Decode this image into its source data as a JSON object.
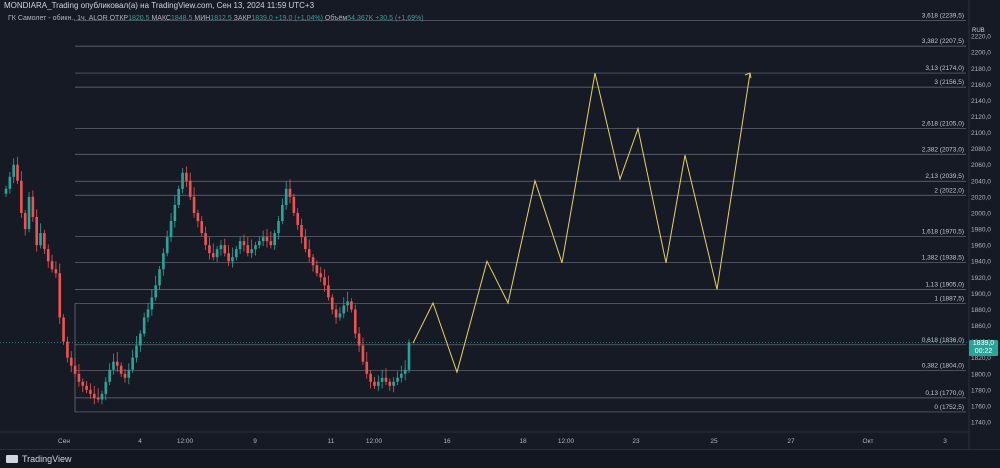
{
  "header": {
    "publisher_line": "MONDIARA_Trading опубликовал(а) на TradingView.com, Сен 13, 2024 11:59 UTC+3"
  },
  "legend": {
    "symbol": "ГК Самолет - обикн., 1ч, ALOR",
    "open_label": "ОТКР",
    "open": "1820,5",
    "high_label": "МАКС",
    "high": "1848,5",
    "low_label": "МИН",
    "low": "1812,5",
    "close_label": "ЗАКР",
    "close": "1839,0",
    "change": "+19,0 (+1,04%)",
    "volume_label": "Объём",
    "volume": "54,367K",
    "volume_change": "+30,5 (+1,69%)"
  },
  "price_axis": {
    "currency": "RUB",
    "current_price": "1839,0",
    "countdown": "00:22"
  },
  "footer": {
    "brand": "TradingView"
  },
  "colors": {
    "background": "#161a25",
    "up": "#26a69a",
    "down": "#ef5350",
    "projection": "#e8d35c",
    "fib_line": "#787b86",
    "axis_text": "#b2b5be"
  },
  "chart_data": {
    "type": "candlestick",
    "ylim": [
      1740,
      2245
    ],
    "y_ticks": [
      1740,
      1760,
      1780,
      1800,
      1820,
      1840,
      1860,
      1880,
      1900,
      1920,
      1940,
      1960,
      1980,
      2000,
      2020,
      2040,
      2060,
      2080,
      2100,
      2120,
      2140,
      2160,
      2180,
      2200,
      2220
    ],
    "y_tick_labels": [
      "1740,0",
      "1760,0",
      "1780,0",
      "1800,0",
      "1820,0",
      "1840,0",
      "1860,0",
      "1880,0",
      "1900,0",
      "1920,0",
      "1940,0",
      "1960,0",
      "1980,0",
      "2000,0",
      "2020,0",
      "2040,0",
      "2060,0",
      "2080,0",
      "2100,0",
      "2120,0",
      "2140,0",
      "2160,0",
      "2180,0",
      "2200,0",
      "2220,0"
    ],
    "x_labels": [
      "Сен",
      "4",
      "12:00",
      "9",
      "11",
      "12:00",
      "16",
      "18",
      "12:00",
      "23",
      "25",
      "27",
      "Окт",
      "3"
    ],
    "fib_levels": [
      {
        "label": "3,618 (2239,5)",
        "value": 2239.5
      },
      {
        "label": "3,382 (2207,5)",
        "value": 2207.5
      },
      {
        "label": "3,13 (2174,0)",
        "value": 2174.0
      },
      {
        "label": "3 (2156,5)",
        "value": 2156.5
      },
      {
        "label": "2,618 (2105,0)",
        "value": 2105.0
      },
      {
        "label": "2,382 (2073,0)",
        "value": 2073.0
      },
      {
        "label": "2,13 (2039,5)",
        "value": 2039.5
      },
      {
        "label": "2 (2022,0)",
        "value": 2022.0
      },
      {
        "label": "1,618 (1970,5)",
        "value": 1970.5
      },
      {
        "label": "1,382 (1938,5)",
        "value": 1938.5
      },
      {
        "label": "1,13 (1905,0)",
        "value": 1905.0
      },
      {
        "label": "1 (1887,5)",
        "value": 1887.5
      },
      {
        "label": "0,618 (1836,0)",
        "value": 1836.0
      },
      {
        "label": "0,382 (1804,0)",
        "value": 1804.0
      },
      {
        "label": "0,13 (1770,0)",
        "value": 1770.0
      },
      {
        "label": "0 (1752,5)",
        "value": 1752.5
      }
    ],
    "candles_close": [
      2030,
      2045,
      2060,
      2040,
      2000,
      1980,
      2020,
      1995,
      1960,
      1975,
      1955,
      1940,
      1930,
      1925,
      1870,
      1840,
      1820,
      1810,
      1800,
      1790,
      1785,
      1780,
      1775,
      1770,
      1768,
      1775,
      1790,
      1805,
      1815,
      1810,
      1800,
      1795,
      1805,
      1820,
      1835,
      1850,
      1870,
      1880,
      1895,
      1910,
      1930,
      1950,
      1970,
      1990,
      2010,
      2030,
      2050,
      2040,
      2020,
      2000,
      1990,
      1975,
      1960,
      1950,
      1945,
      1955,
      1960,
      1950,
      1940,
      1945,
      1955,
      1965,
      1960,
      1950,
      1955,
      1960,
      1965,
      1970,
      1965,
      1960,
      1975,
      1990,
      2010,
      2030,
      2020,
      2000,
      1985,
      1970,
      1955,
      1945,
      1935,
      1925,
      1920,
      1910,
      1895,
      1880,
      1870,
      1875,
      1885,
      1890,
      1880,
      1850,
      1835,
      1815,
      1800,
      1790,
      1785,
      1790,
      1795,
      1790,
      1785,
      1790,
      1795,
      1800,
      1805,
      1839
    ],
    "projection": [
      {
        "x": "12 Sep 18:00",
        "y": 1838
      },
      {
        "x": "13 Sep",
        "y": 1888
      },
      {
        "x": "13 Sep 12:00",
        "y": 1802
      },
      {
        "x": "16 Sep",
        "y": 1940
      },
      {
        "x": "17 Sep",
        "y": 1888
      },
      {
        "x": "18 Sep",
        "y": 2040
      },
      {
        "x": "19 Sep",
        "y": 1938
      },
      {
        "x": "20 Sep",
        "y": 2174
      },
      {
        "x": "20 Sep 18:00",
        "y": 2042
      },
      {
        "x": "23 Sep",
        "y": 2105
      },
      {
        "x": "23 Sep 12:00",
        "y": 1938
      },
      {
        "x": "24 Sep",
        "y": 2072
      },
      {
        "x": "25 Sep",
        "y": 1905
      },
      {
        "x": "26 Sep",
        "y": 2174
      }
    ]
  }
}
